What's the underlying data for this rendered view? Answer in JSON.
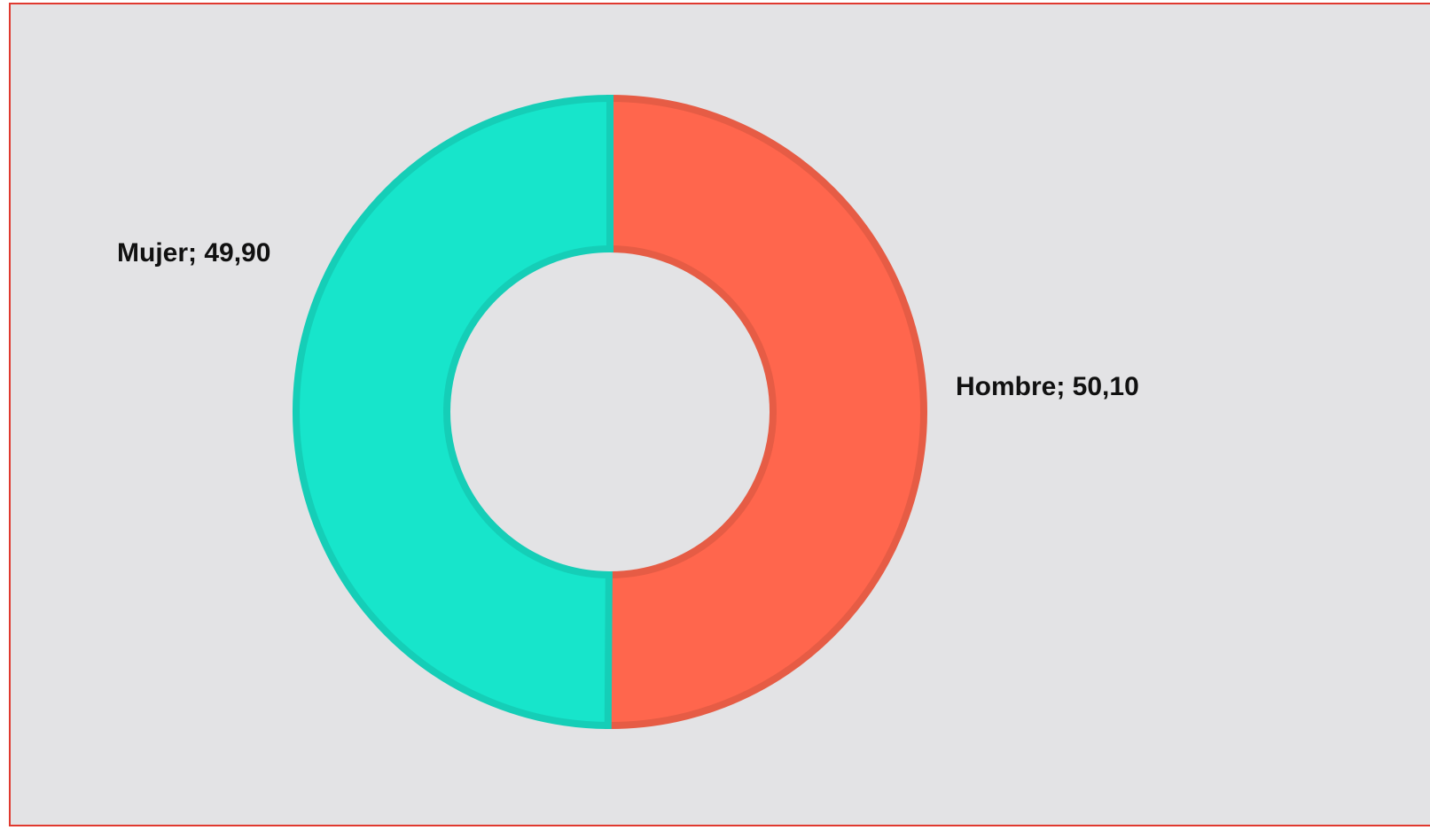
{
  "chart_data": {
    "type": "donut",
    "values": [
      50.1,
      49.9
    ],
    "value_labels": [
      "Hombre; 50,10",
      "Mujer; 49,90"
    ],
    "colors": [
      "#ff664d",
      "#17e5cb"
    ]
  }
}
